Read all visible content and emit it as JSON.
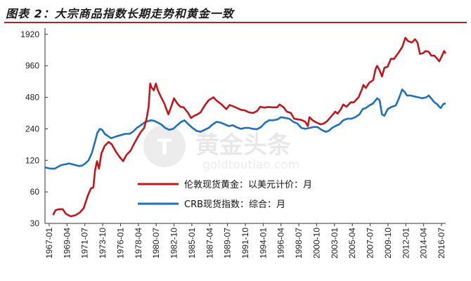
{
  "title": "图表 2：大宗商品指数长期走势和黄金一致",
  "watermark": {
    "text": "黄金头条",
    "subtext": "goldtoutiao.com",
    "logo_icon": "shield-t-icon"
  },
  "chart_data": {
    "type": "line",
    "yscale": "log",
    "ylim": [
      30,
      2200
    ],
    "yticks": [
      30,
      60,
      120,
      240,
      480,
      960,
      1920
    ],
    "xlim": [
      1967.0,
      2016.7
    ],
    "xticks": [
      "1967-01",
      "1969-04",
      "1971-07",
      "1973-10",
      "1976-01",
      "1978-04",
      "1980-07",
      "1982-10",
      "1985-01",
      "1987-04",
      "1989-07",
      "1991-10",
      "1994-01",
      "1996-04",
      "1998-07",
      "2000-10",
      "2003-01",
      "2005-04",
      "2007-07",
      "2009-10",
      "2012-01",
      "2014-04",
      "2016-07"
    ],
    "grid": false,
    "legend_position": "lower-middle",
    "series": [
      {
        "name": "伦敦现货黄金：以美元计价：月",
        "color": "#c0161c",
        "points": [
          [
            1968.0,
            36
          ],
          [
            1968.3,
            40
          ],
          [
            1968.7,
            41
          ],
          [
            1969.2,
            41
          ],
          [
            1969.6,
            37
          ],
          [
            1970.2,
            35
          ],
          [
            1970.8,
            36
          ],
          [
            1971.3,
            38
          ],
          [
            1971.8,
            42
          ],
          [
            1972.3,
            55
          ],
          [
            1972.7,
            65
          ],
          [
            1973.0,
            66
          ],
          [
            1973.2,
            95
          ],
          [
            1973.45,
            118
          ],
          [
            1973.7,
            100
          ],
          [
            1974.0,
            140
          ],
          [
            1974.4,
            165
          ],
          [
            1974.9,
            180
          ],
          [
            1975.3,
            170
          ],
          [
            1975.8,
            145
          ],
          [
            1976.3,
            128
          ],
          [
            1976.7,
            118
          ],
          [
            1977.1,
            135
          ],
          [
            1977.6,
            148
          ],
          [
            1978.0,
            170
          ],
          [
            1978.5,
            200
          ],
          [
            1978.9,
            225
          ],
          [
            1979.3,
            245
          ],
          [
            1979.6,
            300
          ],
          [
            1979.85,
            390
          ],
          [
            1980.05,
            650
          ],
          [
            1980.2,
            600
          ],
          [
            1980.5,
            560
          ],
          [
            1980.75,
            650
          ],
          [
            1981.0,
            560
          ],
          [
            1981.4,
            480
          ],
          [
            1981.8,
            420
          ],
          [
            1982.3,
            330
          ],
          [
            1982.6,
            380
          ],
          [
            1983.0,
            470
          ],
          [
            1983.4,
            420
          ],
          [
            1983.8,
            390
          ],
          [
            1984.2,
            385
          ],
          [
            1984.7,
            345
          ],
          [
            1985.1,
            305
          ],
          [
            1985.5,
            320
          ],
          [
            1985.9,
            330
          ],
          [
            1986.3,
            345
          ],
          [
            1986.8,
            400
          ],
          [
            1987.3,
            450
          ],
          [
            1987.9,
            480
          ],
          [
            1988.3,
            445
          ],
          [
            1988.9,
            410
          ],
          [
            1989.5,
            370
          ],
          [
            1989.9,
            405
          ],
          [
            1990.3,
            395
          ],
          [
            1990.8,
            380
          ],
          [
            1991.3,
            365
          ],
          [
            1991.8,
            360
          ],
          [
            1992.3,
            345
          ],
          [
            1992.8,
            340
          ],
          [
            1993.3,
            355
          ],
          [
            1993.7,
            390
          ],
          [
            1994.2,
            383
          ],
          [
            1994.7,
            388
          ],
          [
            1995.3,
            385
          ],
          [
            1995.8,
            385
          ],
          [
            1996.1,
            410
          ],
          [
            1996.6,
            385
          ],
          [
            1997.0,
            350
          ],
          [
            1997.5,
            340
          ],
          [
            1997.9,
            300
          ],
          [
            1998.3,
            296
          ],
          [
            1998.8,
            292
          ],
          [
            1999.3,
            280
          ],
          [
            1999.6,
            255
          ],
          [
            1999.8,
            310
          ],
          [
            2000.2,
            290
          ],
          [
            2000.7,
            275
          ],
          [
            2001.2,
            265
          ],
          [
            2001.6,
            270
          ],
          [
            2002.0,
            285
          ],
          [
            2002.5,
            315
          ],
          [
            2003.0,
            350
          ],
          [
            2003.3,
            335
          ],
          [
            2003.7,
            370
          ],
          [
            2004.0,
            410
          ],
          [
            2004.4,
            390
          ],
          [
            2004.9,
            430
          ],
          [
            2005.3,
            430
          ],
          [
            2005.9,
            480
          ],
          [
            2006.3,
            570
          ],
          [
            2006.5,
            630
          ],
          [
            2006.8,
            590
          ],
          [
            2007.2,
            660
          ],
          [
            2007.7,
            700
          ],
          [
            2008.0,
            890
          ],
          [
            2008.2,
            960
          ],
          [
            2008.5,
            870
          ],
          [
            2008.8,
            760
          ],
          [
            2009.1,
            920
          ],
          [
            2009.5,
            940
          ],
          [
            2009.9,
            1120
          ],
          [
            2010.3,
            1120
          ],
          [
            2010.9,
            1300
          ],
          [
            2011.3,
            1450
          ],
          [
            2011.7,
            1780
          ],
          [
            2012.0,
            1660
          ],
          [
            2012.5,
            1600
          ],
          [
            2012.9,
            1720
          ],
          [
            2013.2,
            1600
          ],
          [
            2013.5,
            1250
          ],
          [
            2013.9,
            1270
          ],
          [
            2014.2,
            1330
          ],
          [
            2014.6,
            1310
          ],
          [
            2014.9,
            1200
          ],
          [
            2015.3,
            1200
          ],
          [
            2015.6,
            1130
          ],
          [
            2015.9,
            1060
          ],
          [
            2016.2,
            1180
          ],
          [
            2016.5,
            1330
          ],
          [
            2016.7,
            1260
          ]
        ]
      },
      {
        "name": "CRB现货指数：综合：月",
        "color": "#1f6fba",
        "points": [
          [
            1967.0,
            103
          ],
          [
            1967.4,
            101
          ],
          [
            1967.8,
            100
          ],
          [
            1968.2,
            100
          ],
          [
            1968.6,
            104
          ],
          [
            1969.0,
            108
          ],
          [
            1969.5,
            110
          ],
          [
            1970.0,
            112
          ],
          [
            1970.4,
            110
          ],
          [
            1970.8,
            108
          ],
          [
            1971.2,
            106
          ],
          [
            1971.6,
            107
          ],
          [
            1972.0,
            112
          ],
          [
            1972.4,
            120
          ],
          [
            1972.8,
            140
          ],
          [
            1973.2,
            180
          ],
          [
            1973.5,
            220
          ],
          [
            1973.8,
            240
          ],
          [
            1974.1,
            235
          ],
          [
            1974.4,
            215
          ],
          [
            1974.8,
            205
          ],
          [
            1975.2,
            195
          ],
          [
            1975.6,
            200
          ],
          [
            1976.0,
            205
          ],
          [
            1976.5,
            210
          ],
          [
            1977.0,
            215
          ],
          [
            1977.5,
            215
          ],
          [
            1977.9,
            225
          ],
          [
            1978.4,
            245
          ],
          [
            1978.9,
            260
          ],
          [
            1979.3,
            275
          ],
          [
            1979.8,
            285
          ],
          [
            1980.2,
            290
          ],
          [
            1980.6,
            285
          ],
          [
            1981.0,
            275
          ],
          [
            1981.4,
            265
          ],
          [
            1981.9,
            245
          ],
          [
            1982.4,
            235
          ],
          [
            1982.9,
            240
          ],
          [
            1983.4,
            260
          ],
          [
            1983.9,
            280
          ],
          [
            1984.3,
            290
          ],
          [
            1984.8,
            265
          ],
          [
            1985.3,
            245
          ],
          [
            1985.8,
            230
          ],
          [
            1986.3,
            225
          ],
          [
            1986.8,
            235
          ],
          [
            1987.3,
            245
          ],
          [
            1987.8,
            265
          ],
          [
            1988.3,
            280
          ],
          [
            1988.8,
            275
          ],
          [
            1989.3,
            265
          ],
          [
            1989.8,
            255
          ],
          [
            1990.3,
            260
          ],
          [
            1990.8,
            248
          ],
          [
            1991.3,
            240
          ],
          [
            1991.8,
            245
          ],
          [
            1992.3,
            245
          ],
          [
            1992.8,
            240
          ],
          [
            1993.3,
            238
          ],
          [
            1993.8,
            250
          ],
          [
            1994.3,
            275
          ],
          [
            1994.8,
            290
          ],
          [
            1995.3,
            290
          ],
          [
            1995.8,
            295
          ],
          [
            1996.3,
            310
          ],
          [
            1996.8,
            305
          ],
          [
            1997.3,
            300
          ],
          [
            1997.8,
            280
          ],
          [
            1998.3,
            270
          ],
          [
            1998.8,
            245
          ],
          [
            1999.3,
            240
          ],
          [
            1999.8,
            245
          ],
          [
            2000.3,
            250
          ],
          [
            2000.8,
            250
          ],
          [
            2001.3,
            235
          ],
          [
            2001.8,
            225
          ],
          [
            2002.2,
            230
          ],
          [
            2002.6,
            245
          ],
          [
            2003.0,
            255
          ],
          [
            2003.5,
            265
          ],
          [
            2004.0,
            290
          ],
          [
            2004.5,
            300
          ],
          [
            2005.0,
            300
          ],
          [
            2005.5,
            310
          ],
          [
            2006.0,
            330
          ],
          [
            2006.4,
            370
          ],
          [
            2006.8,
            380
          ],
          [
            2007.2,
            400
          ],
          [
            2007.7,
            420
          ],
          [
            2008.2,
            470
          ],
          [
            2008.5,
            450
          ],
          [
            2008.8,
            330
          ],
          [
            2009.1,
            320
          ],
          [
            2009.5,
            370
          ],
          [
            2010.0,
            390
          ],
          [
            2010.5,
            400
          ],
          [
            2010.9,
            470
          ],
          [
            2011.3,
            570
          ],
          [
            2011.6,
            540
          ],
          [
            2011.9,
            500
          ],
          [
            2012.3,
            500
          ],
          [
            2012.8,
            490
          ],
          [
            2013.3,
            480
          ],
          [
            2013.8,
            470
          ],
          [
            2014.3,
            480
          ],
          [
            2014.6,
            500
          ],
          [
            2014.9,
            470
          ],
          [
            2015.3,
            430
          ],
          [
            2015.7,
            410
          ],
          [
            2015.9,
            390
          ],
          [
            2016.1,
            380
          ],
          [
            2016.4,
            415
          ],
          [
            2016.7,
            420
          ]
        ]
      }
    ]
  }
}
